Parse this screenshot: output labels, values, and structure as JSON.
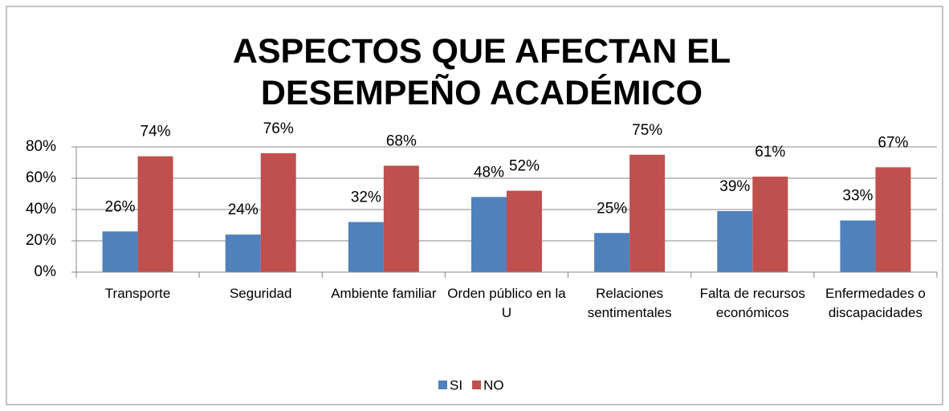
{
  "chart_data": {
    "type": "bar",
    "title": "ASPECTOS QUE AFECTAN EL DESEMPEÑO ACADÉMICO",
    "categories": [
      "Transporte",
      "Seguridad",
      "Ambiente familiar",
      "Orden público en la U",
      "Relaciones sentimentales",
      "Falta de recursos económicos",
      "Enfermedades o discapacidades"
    ],
    "series": [
      {
        "name": "SI",
        "color": "#4f81bd",
        "values": [
          26,
          24,
          32,
          48,
          25,
          39,
          33
        ],
        "value_labels": [
          "26%",
          "24%",
          "32%",
          "48%",
          "25%",
          "39%",
          "33%"
        ]
      },
      {
        "name": "NO",
        "color": "#c0504d",
        "values": [
          74,
          76,
          68,
          52,
          75,
          61,
          67
        ],
        "value_labels": [
          "74%",
          "76%",
          "68%",
          "52%",
          "75%",
          "61%",
          "67%"
        ]
      }
    ],
    "ylim": [
      0,
      80
    ],
    "yticks": [
      {
        "value": 0,
        "label": "0%"
      },
      {
        "value": 20,
        "label": "20%"
      },
      {
        "value": 40,
        "label": "40%"
      },
      {
        "value": 60,
        "label": "60%"
      },
      {
        "value": 80,
        "label": "80%"
      }
    ],
    "grid": true,
    "legend": "bottom"
  }
}
